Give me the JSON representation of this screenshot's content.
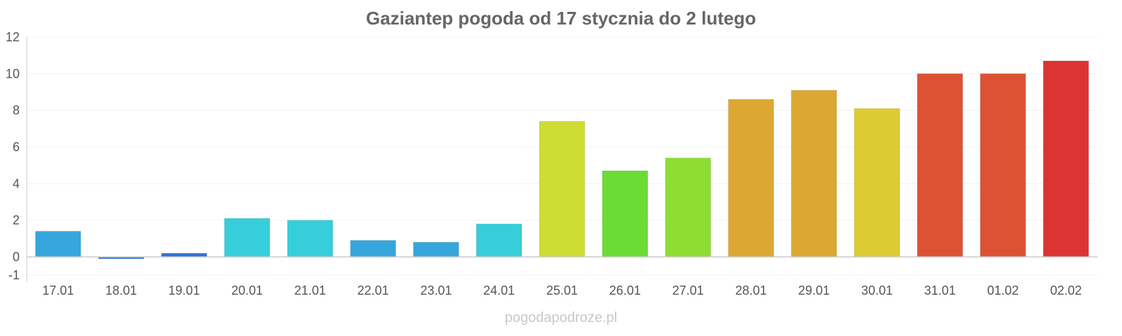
{
  "chart_data": {
    "type": "bar",
    "title": "Gaziantep pogoda od 17 stycznia do 2 lutego",
    "xlabel": "",
    "ylabel": "",
    "ylim": [
      -1,
      12
    ],
    "yticks": [
      "12",
      "10",
      "8",
      "6",
      "4",
      "2",
      "0",
      "-1"
    ],
    "ytick_values": [
      12,
      10,
      8,
      6,
      4,
      2,
      0,
      -1
    ],
    "grid": true,
    "categories": [
      "17.01",
      "18.01",
      "19.01",
      "20.01",
      "21.01",
      "22.01",
      "23.01",
      "24.01",
      "25.01",
      "26.01",
      "27.01",
      "28.01",
      "29.01",
      "30.01",
      "31.01",
      "01.02",
      "02.02"
    ],
    "values": [
      1.4,
      -0.1,
      0.2,
      2.1,
      2.0,
      0.9,
      0.8,
      1.8,
      7.4,
      4.7,
      5.4,
      8.6,
      9.1,
      8.1,
      10.0,
      10.0,
      10.7
    ],
    "colors": [
      "#36a6dc",
      "#2f73d6",
      "#2f73d6",
      "#36ceda",
      "#36ceda",
      "#36a6dc",
      "#36a6dc",
      "#36ceda",
      "#cedd33",
      "#6adc33",
      "#8ddd33",
      "#dca833",
      "#dca833",
      "#dccb33",
      "#dc5233",
      "#dc5233",
      "#dc3433"
    ],
    "watermark": "pogodapodroze.pl"
  }
}
